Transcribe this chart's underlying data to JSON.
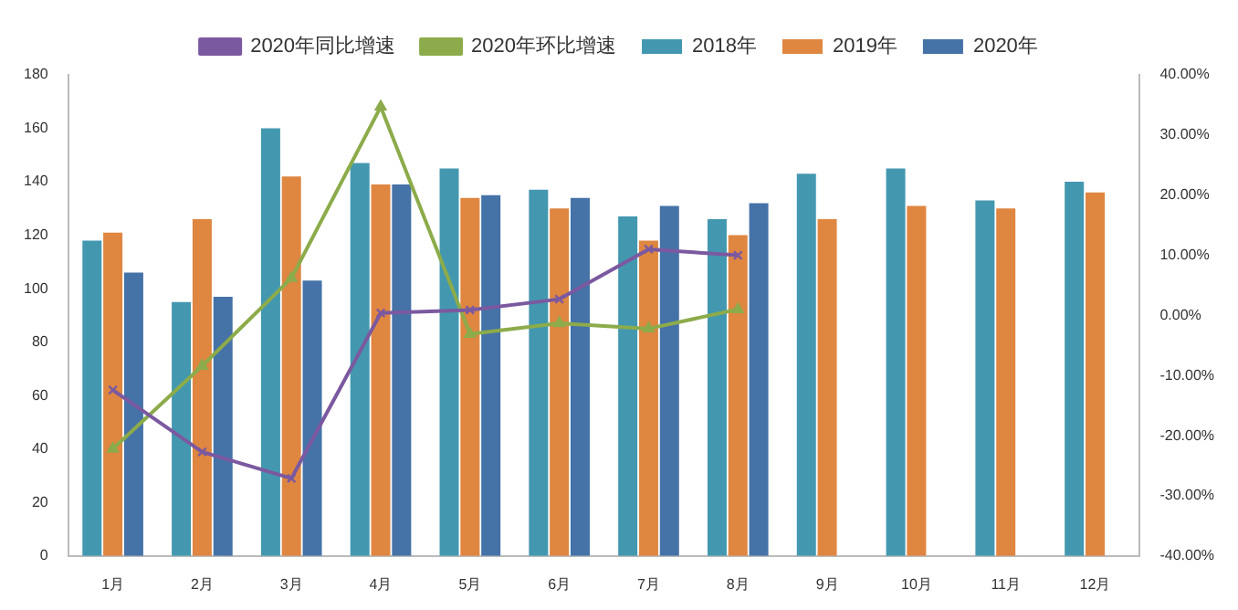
{
  "chart_data": {
    "type": "bar",
    "categories": [
      "1月",
      "2月",
      "3月",
      "4月",
      "5月",
      "6月",
      "7月",
      "8月",
      "9月",
      "10月",
      "11月",
      "12月"
    ],
    "series": [
      {
        "name": "2018年",
        "color": "#4398b0",
        "values": [
          118,
          95,
          160,
          147,
          145,
          137,
          127,
          126,
          143,
          145,
          133,
          140
        ]
      },
      {
        "name": "2019年",
        "color": "#df8641",
        "values": [
          121,
          126,
          142,
          139,
          134,
          130,
          118,
          120,
          126,
          131,
          130,
          136
        ]
      },
      {
        "name": "2020年",
        "color": "#4572a7",
        "values": [
          106,
          97,
          103,
          139,
          135,
          134,
          131,
          132,
          null,
          null,
          null,
          null
        ]
      },
      {
        "name": "2020年同比增速",
        "type": "line",
        "axis": "y2",
        "marker": "cross",
        "color": "#7b59a0",
        "values": [
          -12.4,
          -22.7,
          -27.1,
          0.4,
          0.9,
          2.7,
          11,
          10,
          null,
          null,
          null,
          null
        ]
      },
      {
        "name": "2020年环比增速",
        "type": "line",
        "axis": "y2",
        "marker": "triangle",
        "color": "#8cab4a",
        "values": [
          -22.2,
          -8.4,
          6.2,
          34.7,
          -3.1,
          -1.3,
          -2.2,
          1,
          null,
          null,
          null,
          null
        ]
      }
    ],
    "ylim": [
      0,
      180
    ],
    "yticks": [
      0,
      20,
      40,
      60,
      80,
      100,
      120,
      140,
      160,
      180
    ],
    "y2lim": [
      -40,
      40
    ],
    "y2ticks": [
      {
        "value": -40,
        "label": "-40.00%"
      },
      {
        "value": -30,
        "label": "-30.00%"
      },
      {
        "value": -20,
        "label": "-20.00%"
      },
      {
        "value": -10,
        "label": "-10.00%"
      },
      {
        "value": 0,
        "label": "0.00%"
      },
      {
        "value": 10,
        "label": "10.00%"
      },
      {
        "value": 20,
        "label": "20.00%"
      },
      {
        "value": 30,
        "label": "30.00%"
      },
      {
        "value": 40,
        "label": "40.00%"
      }
    ],
    "grid": false,
    "legend": "top"
  }
}
